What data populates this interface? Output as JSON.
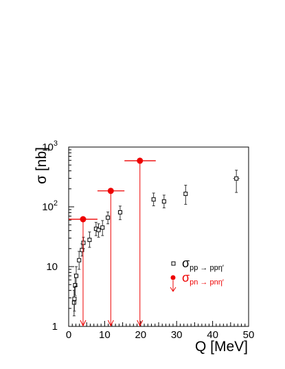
{
  "chart_data": {
    "type": "scatter",
    "xlabel": "Q [MeV]",
    "ylabel": "σ [nb]",
    "xlim": [
      0,
      50
    ],
    "ylim": [
      1,
      1000
    ],
    "yscale": "log",
    "grid": false,
    "legend_position": "center-right",
    "x_ticks": [
      {
        "value": 0,
        "label": "0"
      },
      {
        "value": 10,
        "label": "10"
      },
      {
        "value": 20,
        "label": "20"
      },
      {
        "value": 30,
        "label": "30"
      },
      {
        "value": 40,
        "label": "40"
      },
      {
        "value": 50,
        "label": "50"
      }
    ],
    "y_ticks": [
      {
        "value": 1,
        "label": "1"
      },
      {
        "value": 10,
        "label": "10"
      },
      {
        "value": 100,
        "label": "10",
        "sup": "2"
      },
      {
        "value": 1000,
        "label": "10",
        "sup": "3"
      }
    ],
    "series": [
      {
        "name": "σ pp → ppη′",
        "legend_main": "σ",
        "legend_sub": "pp → ppη′",
        "marker": "open-square",
        "color": "#000000",
        "points": [
          {
            "x": 1.5,
            "y": 2.5,
            "ylo": 1.5,
            "yhi": 4.0
          },
          {
            "x": 1.6,
            "y": 2.9,
            "ylo": 1.8,
            "yhi": 4.5
          },
          {
            "x": 1.8,
            "y": 4.9,
            "ylo": 3.3,
            "yhi": 7.5
          },
          {
            "x": 2.1,
            "y": 7.0,
            "ylo": 4.7,
            "yhi": 10.0
          },
          {
            "x": 2.9,
            "y": 12.8,
            "ylo": 9.0,
            "yhi": 18.0
          },
          {
            "x": 3.7,
            "y": 19.0,
            "ylo": 15.0,
            "yhi": 24.0
          },
          {
            "x": 4.1,
            "y": 25.0,
            "ylo": 20.0,
            "yhi": 31.0
          },
          {
            "x": 5.8,
            "y": 28.0,
            "ylo": 21.0,
            "yhi": 38.0
          },
          {
            "x": 7.6,
            "y": 43.0,
            "ylo": 33.0,
            "yhi": 55.0
          },
          {
            "x": 8.3,
            "y": 41.0,
            "ylo": 31.0,
            "yhi": 52.0
          },
          {
            "x": 9.4,
            "y": 45.0,
            "ylo": 33.0,
            "yhi": 59.0
          },
          {
            "x": 10.9,
            "y": 66.0,
            "ylo": 52.0,
            "yhi": 82.0
          },
          {
            "x": 14.3,
            "y": 81.0,
            "ylo": 61.0,
            "yhi": 103.0
          },
          {
            "x": 23.6,
            "y": 133.0,
            "ylo": 104.0,
            "yhi": 170.0
          },
          {
            "x": 26.5,
            "y": 123.0,
            "ylo": 96.0,
            "yhi": 157.0
          },
          {
            "x": 32.5,
            "y": 165.0,
            "ylo": 110.0,
            "yhi": 230.0
          },
          {
            "x": 46.6,
            "y": 298.0,
            "ylo": 174.0,
            "yhi": 410.0,
            "xlo": 45.7,
            "xhi": 47.5
          }
        ]
      },
      {
        "name": "σ pn → pnη′",
        "legend_main": "σ",
        "legend_sub": "pn → pnη′",
        "marker": "filled-circle",
        "color": "#ee0000",
        "upper_limit": true,
        "points": [
          {
            "x": 4.0,
            "y": 62.0,
            "xlo": 0.0,
            "xhi": 8.0
          },
          {
            "x": 11.7,
            "y": 185.0,
            "xlo": 8.0,
            "xhi": 15.5
          },
          {
            "x": 19.8,
            "y": 590.0,
            "xlo": 15.5,
            "xhi": 24.2
          }
        ]
      }
    ]
  }
}
